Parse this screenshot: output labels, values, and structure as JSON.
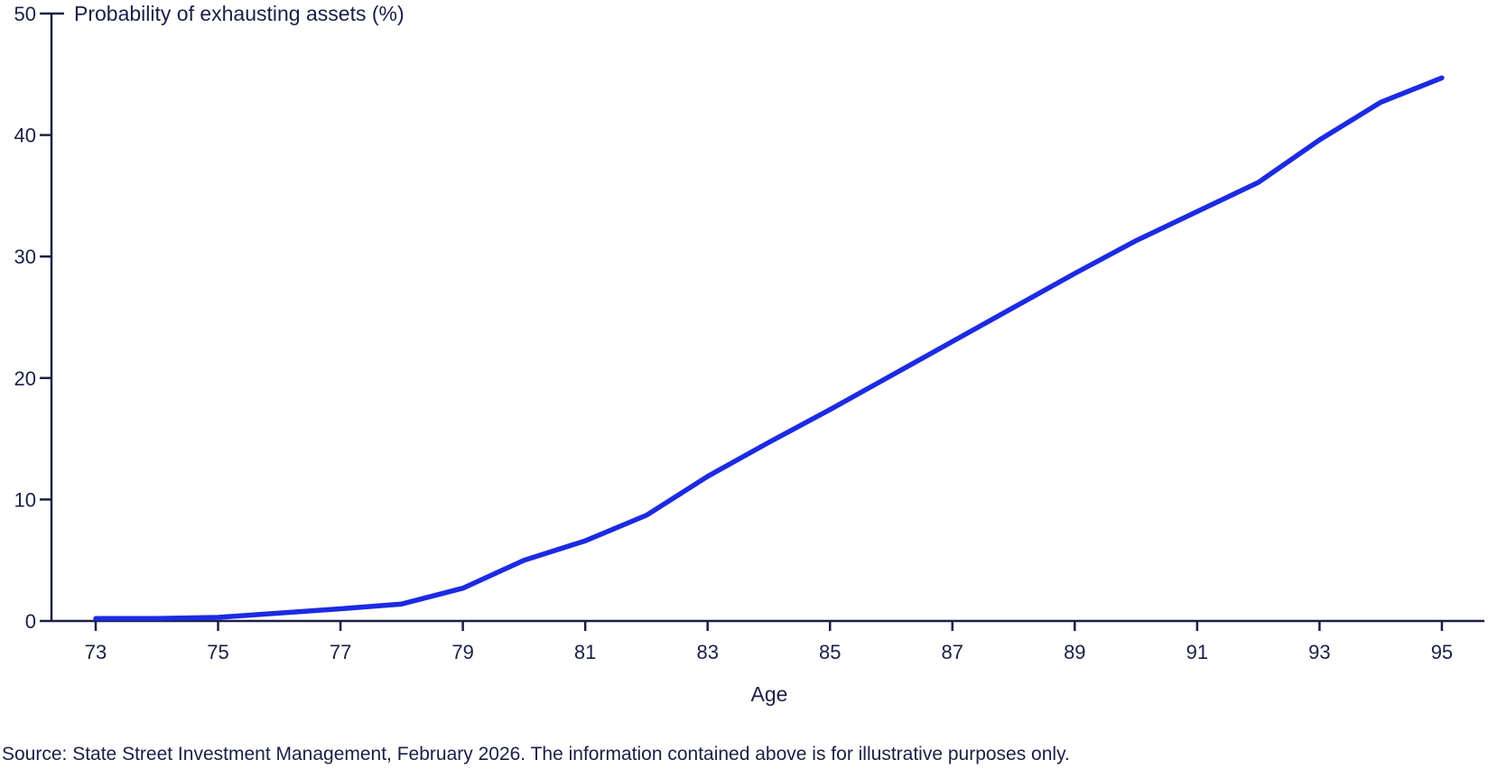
{
  "page": {
    "source_note": "Source: State Street Investment Management, February 2026. The information contained above is for illustrative purposes only."
  },
  "chart_data": {
    "type": "line",
    "title": "Probability of exhausting assets (%)",
    "xlabel": "Age",
    "ylabel": "Probability of exhausting assets (%)",
    "x": [
      73,
      74,
      75,
      76,
      77,
      78,
      79,
      80,
      81,
      82,
      83,
      84,
      85,
      86,
      87,
      88,
      89,
      90,
      91,
      92,
      93,
      94,
      95
    ],
    "series": [
      {
        "name": "Probability of exhausting assets (%)",
        "values": [
          0.2,
          0.2,
          0.3,
          0.65,
          1.0,
          1.4,
          2.7,
          5.0,
          6.6,
          8.7,
          11.9,
          14.7,
          17.4,
          20.2,
          23.0,
          25.8,
          28.6,
          31.3,
          33.7,
          36.1,
          39.6,
          42.7,
          44.7
        ]
      }
    ],
    "xlim": [
      73,
      95
    ],
    "ylim": [
      0,
      50
    ],
    "xticks": [
      73,
      75,
      77,
      79,
      81,
      83,
      85,
      87,
      89,
      91,
      93,
      95
    ],
    "yticks": [
      0,
      10,
      20,
      30,
      40,
      50
    ],
    "grid": false,
    "legend_position": "none",
    "line_color": "#1c2be2",
    "axis_color": "#1b1f45",
    "text_color": "#1b1f45",
    "background_color": "#ffffff"
  }
}
